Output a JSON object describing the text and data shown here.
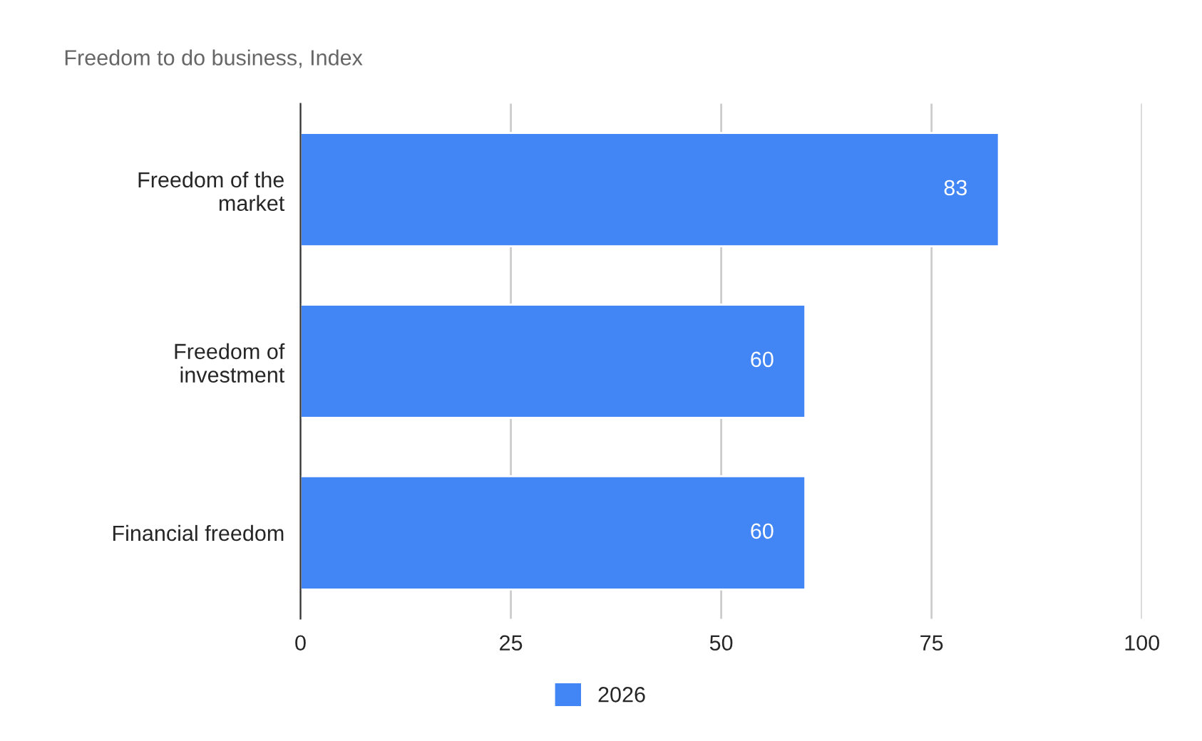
{
  "chart_data": {
    "type": "bar",
    "orientation": "horizontal",
    "title": "Freedom to do business, Index",
    "categories": [
      "Freedom of the\nmarket",
      "Freedom of\ninvestment",
      "Financial freedom"
    ],
    "series": [
      {
        "name": "2026",
        "color": "#4285f4",
        "values": [
          83,
          60,
          60
        ]
      }
    ],
    "xlim": [
      0,
      100
    ],
    "xticks": [
      0,
      25,
      50,
      75,
      100
    ],
    "grid": "x",
    "legend": "bottom",
    "data_labels": true
  }
}
